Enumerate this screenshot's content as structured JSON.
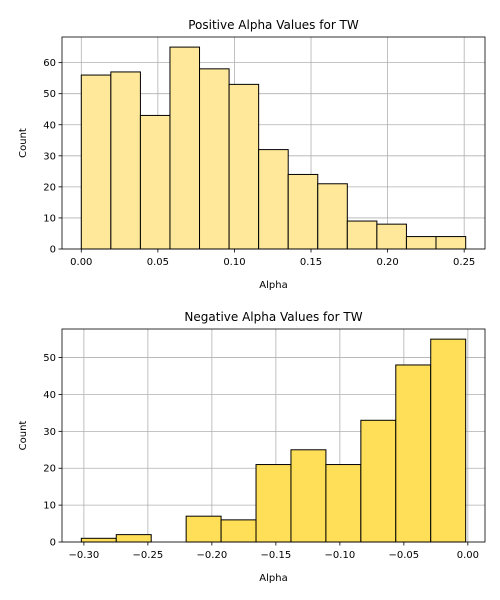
{
  "chart_data": [
    {
      "type": "bar",
      "title": "Positive Alpha Values for TW",
      "xlabel": "Alpha",
      "ylabel": "Count",
      "color": "#ffe899",
      "edge_color": "#000000",
      "bin_edges": [
        0.0,
        0.0193,
        0.0386,
        0.0579,
        0.0772,
        0.0965,
        0.1158,
        0.1351,
        0.1544,
        0.1737,
        0.193,
        0.2123,
        0.2316,
        0.251
      ],
      "values": [
        56,
        57,
        43,
        65,
        58,
        53,
        32,
        24,
        21,
        9,
        8,
        4,
        4
      ],
      "xlim": [
        -0.0126,
        0.2636
      ],
      "ylim": [
        0,
        68.25
      ],
      "xticks": [
        0.0,
        0.05,
        0.1,
        0.15,
        0.2,
        0.25
      ],
      "xtick_labels": [
        "0.00",
        "0.05",
        "0.10",
        "0.15",
        "0.20",
        "0.25"
      ],
      "yticks": [
        0,
        10,
        20,
        30,
        40,
        50,
        60
      ],
      "ytick_labels": [
        "0",
        "10",
        "20",
        "30",
        "40",
        "50",
        "60"
      ],
      "grid": true
    },
    {
      "type": "bar",
      "title": "Negative Alpha Values for TW",
      "xlabel": "Alpha",
      "ylabel": "Count",
      "color": "#ffdf58",
      "edge_color": "#000000",
      "bin_edges": [
        -0.302,
        -0.2747,
        -0.2474,
        -0.2201,
        -0.1928,
        -0.1655,
        -0.1382,
        -0.1109,
        -0.0836,
        -0.0563,
        -0.029,
        -0.0017
      ],
      "values": [
        1,
        2,
        0,
        7,
        6,
        21,
        25,
        21,
        33,
        48,
        55
      ],
      "xlim": [
        -0.3171,
        0.0134
      ],
      "ylim": [
        0,
        57.75
      ],
      "xticks": [
        -0.3,
        -0.25,
        -0.2,
        -0.15,
        -0.1,
        -0.05,
        0.0
      ],
      "xtick_labels": [
        "−0.30",
        "−0.25",
        "−0.20",
        "−0.15",
        "−0.10",
        "−0.05",
        "0.00"
      ],
      "yticks": [
        0,
        10,
        20,
        30,
        40,
        50
      ],
      "ytick_labels": [
        "0",
        "10",
        "20",
        "30",
        "40",
        "50"
      ],
      "grid": true
    }
  ]
}
